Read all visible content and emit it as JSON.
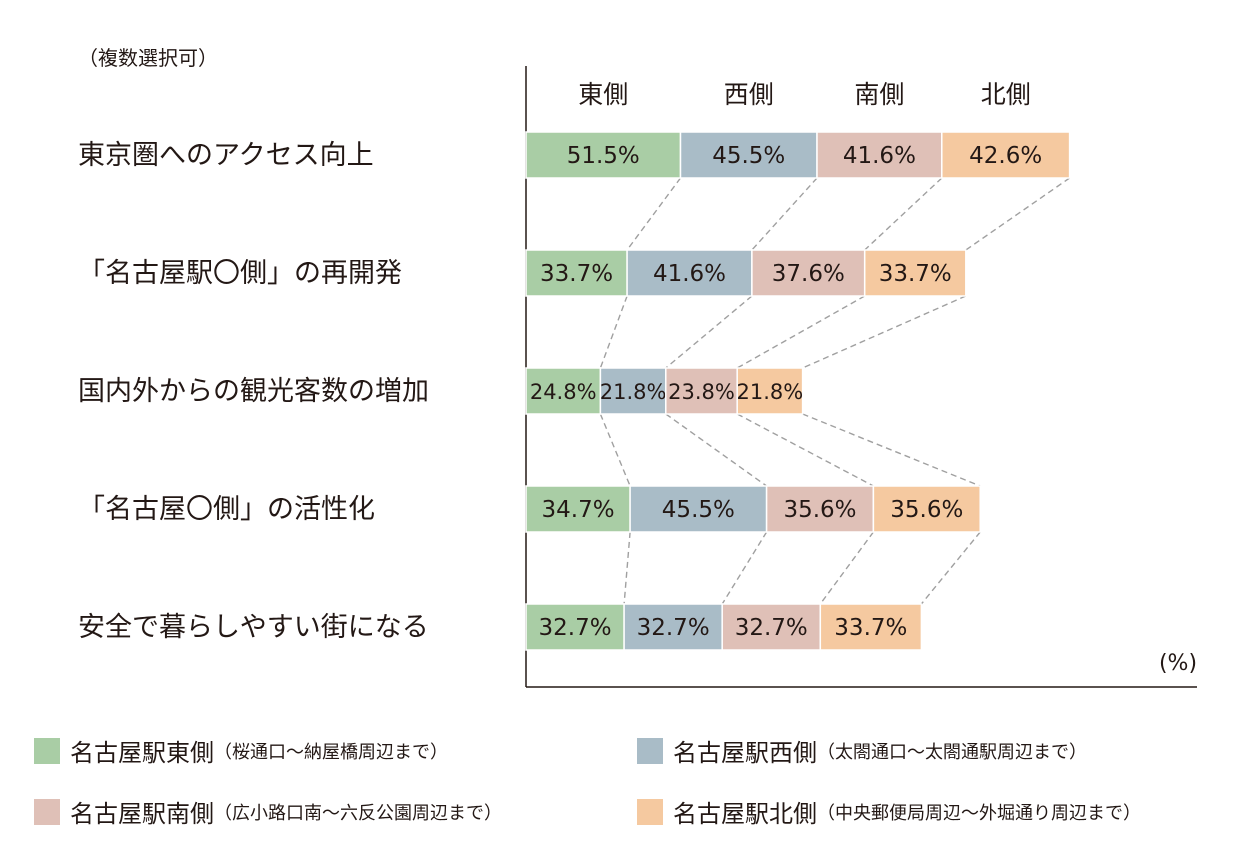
{
  "note": "（複数選択可）",
  "chart_data": {
    "type": "bar",
    "orientation": "horizontal",
    "stacked": true,
    "unit_label": "(%)",
    "column_headers": [
      "東側",
      "西側",
      "南側",
      "北側"
    ],
    "categories": [
      "東京圏へのアクセス向上",
      "「名古屋駅〇側」の再開発",
      "国内外からの観光客数の増加",
      "「名古屋〇側」の活性化",
      "安全で暮らしやすい街になる"
    ],
    "series": [
      {
        "name": "東側",
        "color": "#a9cda5",
        "values": [
          51.5,
          33.7,
          24.8,
          34.7,
          32.7
        ],
        "labels": [
          "51.5%",
          "33.7%",
          "24.8%",
          "34.7%",
          "32.7%"
        ]
      },
      {
        "name": "西側",
        "color": "#a9bcc7",
        "values": [
          45.5,
          41.6,
          21.8,
          45.5,
          32.7
        ],
        "labels": [
          "45.5%",
          "41.6%",
          "21.8%",
          "45.5%",
          "32.7%"
        ]
      },
      {
        "name": "南側",
        "color": "#dfc0b7",
        "values": [
          41.6,
          37.6,
          23.8,
          35.6,
          32.7
        ],
        "labels": [
          "41.6%",
          "37.6%",
          "23.8%",
          "35.6%",
          "32.7%"
        ]
      },
      {
        "name": "北側",
        "color": "#f5c9a0",
        "values": [
          42.6,
          33.7,
          21.8,
          35.6,
          33.7
        ],
        "labels": [
          "42.6%",
          "33.7%",
          "21.8%",
          "35.6%",
          "33.7%"
        ]
      }
    ],
    "connector_lines": "dashed"
  },
  "legend": [
    {
      "main": "名古屋駅東側",
      "sub": "（桜通口～納屋橋周辺まで）",
      "color": "#a9cda5"
    },
    {
      "main": "名古屋駅西側",
      "sub": "（太閤通口～太閤通駅周辺まで）",
      "color": "#a9bcc7"
    },
    {
      "main": "名古屋駅南側",
      "sub": "（広小路口南～六反公園周辺まで）",
      "color": "#dfc0b7"
    },
    {
      "main": "名古屋駅北側",
      "sub": "（中央郵便局周辺～外堀通り周辺まで）",
      "color": "#f5c9a0"
    }
  ]
}
